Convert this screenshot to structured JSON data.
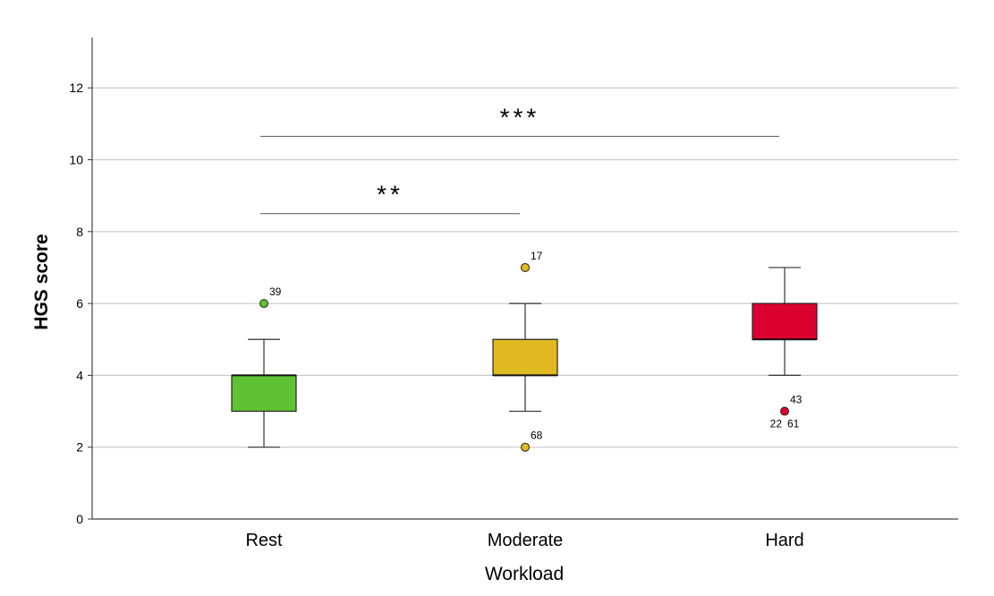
{
  "chart_data": {
    "type": "box",
    "xlabel": "Workload",
    "ylabel": "HGS score",
    "ylim": [
      0,
      13.4
    ],
    "yticks": [
      0,
      2,
      4,
      6,
      8,
      10,
      12
    ],
    "grid": true,
    "categories": [
      "Rest",
      "Moderate",
      "Hard"
    ],
    "boxes": [
      {
        "category": "Rest",
        "color": "#5ec232",
        "whisker_low": 2,
        "q1": 3,
        "median": 4,
        "q3": 4,
        "whisker_high": 5,
        "outliers": [
          {
            "value": 6,
            "labels": [
              "39"
            ]
          }
        ]
      },
      {
        "category": "Moderate",
        "color": "#e0b81f",
        "whisker_low": 3,
        "q1": 4,
        "median": 4,
        "q3": 5,
        "whisker_high": 6,
        "outliers": [
          {
            "value": 7,
            "labels": [
              "17"
            ]
          },
          {
            "value": 2,
            "labels": [
              "68"
            ]
          }
        ]
      },
      {
        "category": "Hard",
        "color": "#dc0030",
        "whisker_low": 4,
        "q1": 5,
        "median": 5,
        "q3": 6,
        "whisker_high": 7,
        "outliers": [
          {
            "value": 3,
            "labels": [
              "43",
              "22",
              "61"
            ]
          }
        ]
      }
    ],
    "significance": [
      {
        "from": "Rest",
        "to": "Moderate",
        "y": 8.5,
        "label": "**"
      },
      {
        "from": "Rest",
        "to": "Hard",
        "y": 10.65,
        "label": "***"
      }
    ]
  }
}
